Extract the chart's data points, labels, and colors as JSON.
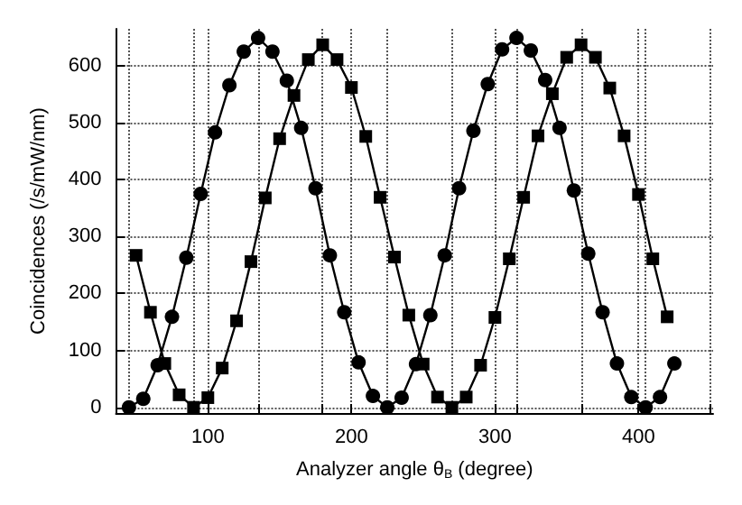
{
  "chart_data": {
    "type": "line",
    "xlabel": "Analyzer angle θ$_{B}$ (degree)",
    "ylabel": "Coincidences (/s/mW/nm)",
    "xlim": [
      36,
      452
    ],
    "ylim": [
      -10,
      665
    ],
    "xticks": [
      {
        "value": 45,
        "label": null
      },
      {
        "value": 90,
        "label": null
      },
      100,
      {
        "value": 135,
        "label": null
      },
      {
        "value": 180,
        "label": null
      },
      200,
      {
        "value": 225,
        "label": null
      },
      {
        "value": 270,
        "label": null
      },
      300,
      {
        "value": 315,
        "label": null
      },
      {
        "value": 360,
        "label": null
      },
      400,
      {
        "value": 405,
        "label": null
      },
      {
        "value": 450,
        "label": null
      }
    ],
    "yticks": [
      0,
      100,
      200,
      300,
      400,
      500,
      600
    ],
    "grid": true,
    "series": [
      {
        "color": "#000000",
        "marker": "circle",
        "x": [
          45,
          55,
          65,
          75,
          85,
          95,
          105,
          115,
          125,
          135,
          145,
          155,
          165,
          175,
          185,
          195,
          205,
          215,
          225,
          235,
          245,
          255,
          265,
          275,
          285,
          295,
          305,
          315,
          325,
          335,
          345,
          355,
          365,
          375,
          385,
          395,
          405,
          415,
          425
        ],
        "values": [
          0,
          15,
          74,
          159,
          263,
          375,
          483,
          566,
          625,
          649,
          625,
          574,
          491,
          385,
          267,
          167,
          79,
          20,
          0,
          17,
          76,
          162,
          267,
          385,
          486,
          568,
          629,
          649,
          627,
          575,
          491,
          381,
          270,
          167,
          77,
          18,
          0,
          18,
          77
        ]
      },
      {
        "color": "#000000",
        "marker": "square",
        "x": [
          50,
          60,
          70,
          80,
          90,
          100,
          110,
          120,
          130,
          140,
          150,
          160,
          170,
          180,
          190,
          200,
          210,
          220,
          230,
          240,
          250,
          260,
          270,
          280,
          290,
          300,
          310,
          320,
          330,
          340,
          350,
          360,
          370,
          380,
          390,
          400,
          410,
          420
        ],
        "values": [
          267,
          167,
          77,
          22,
          0,
          17,
          69,
          152,
          256,
          368,
          472,
          548,
          611,
          637,
          611,
          562,
          476,
          369,
          264,
          162,
          76,
          18,
          0,
          18,
          74,
          158,
          261,
          369,
          477,
          551,
          615,
          637,
          615,
          561,
          477,
          374,
          261,
          159
        ]
      }
    ]
  }
}
